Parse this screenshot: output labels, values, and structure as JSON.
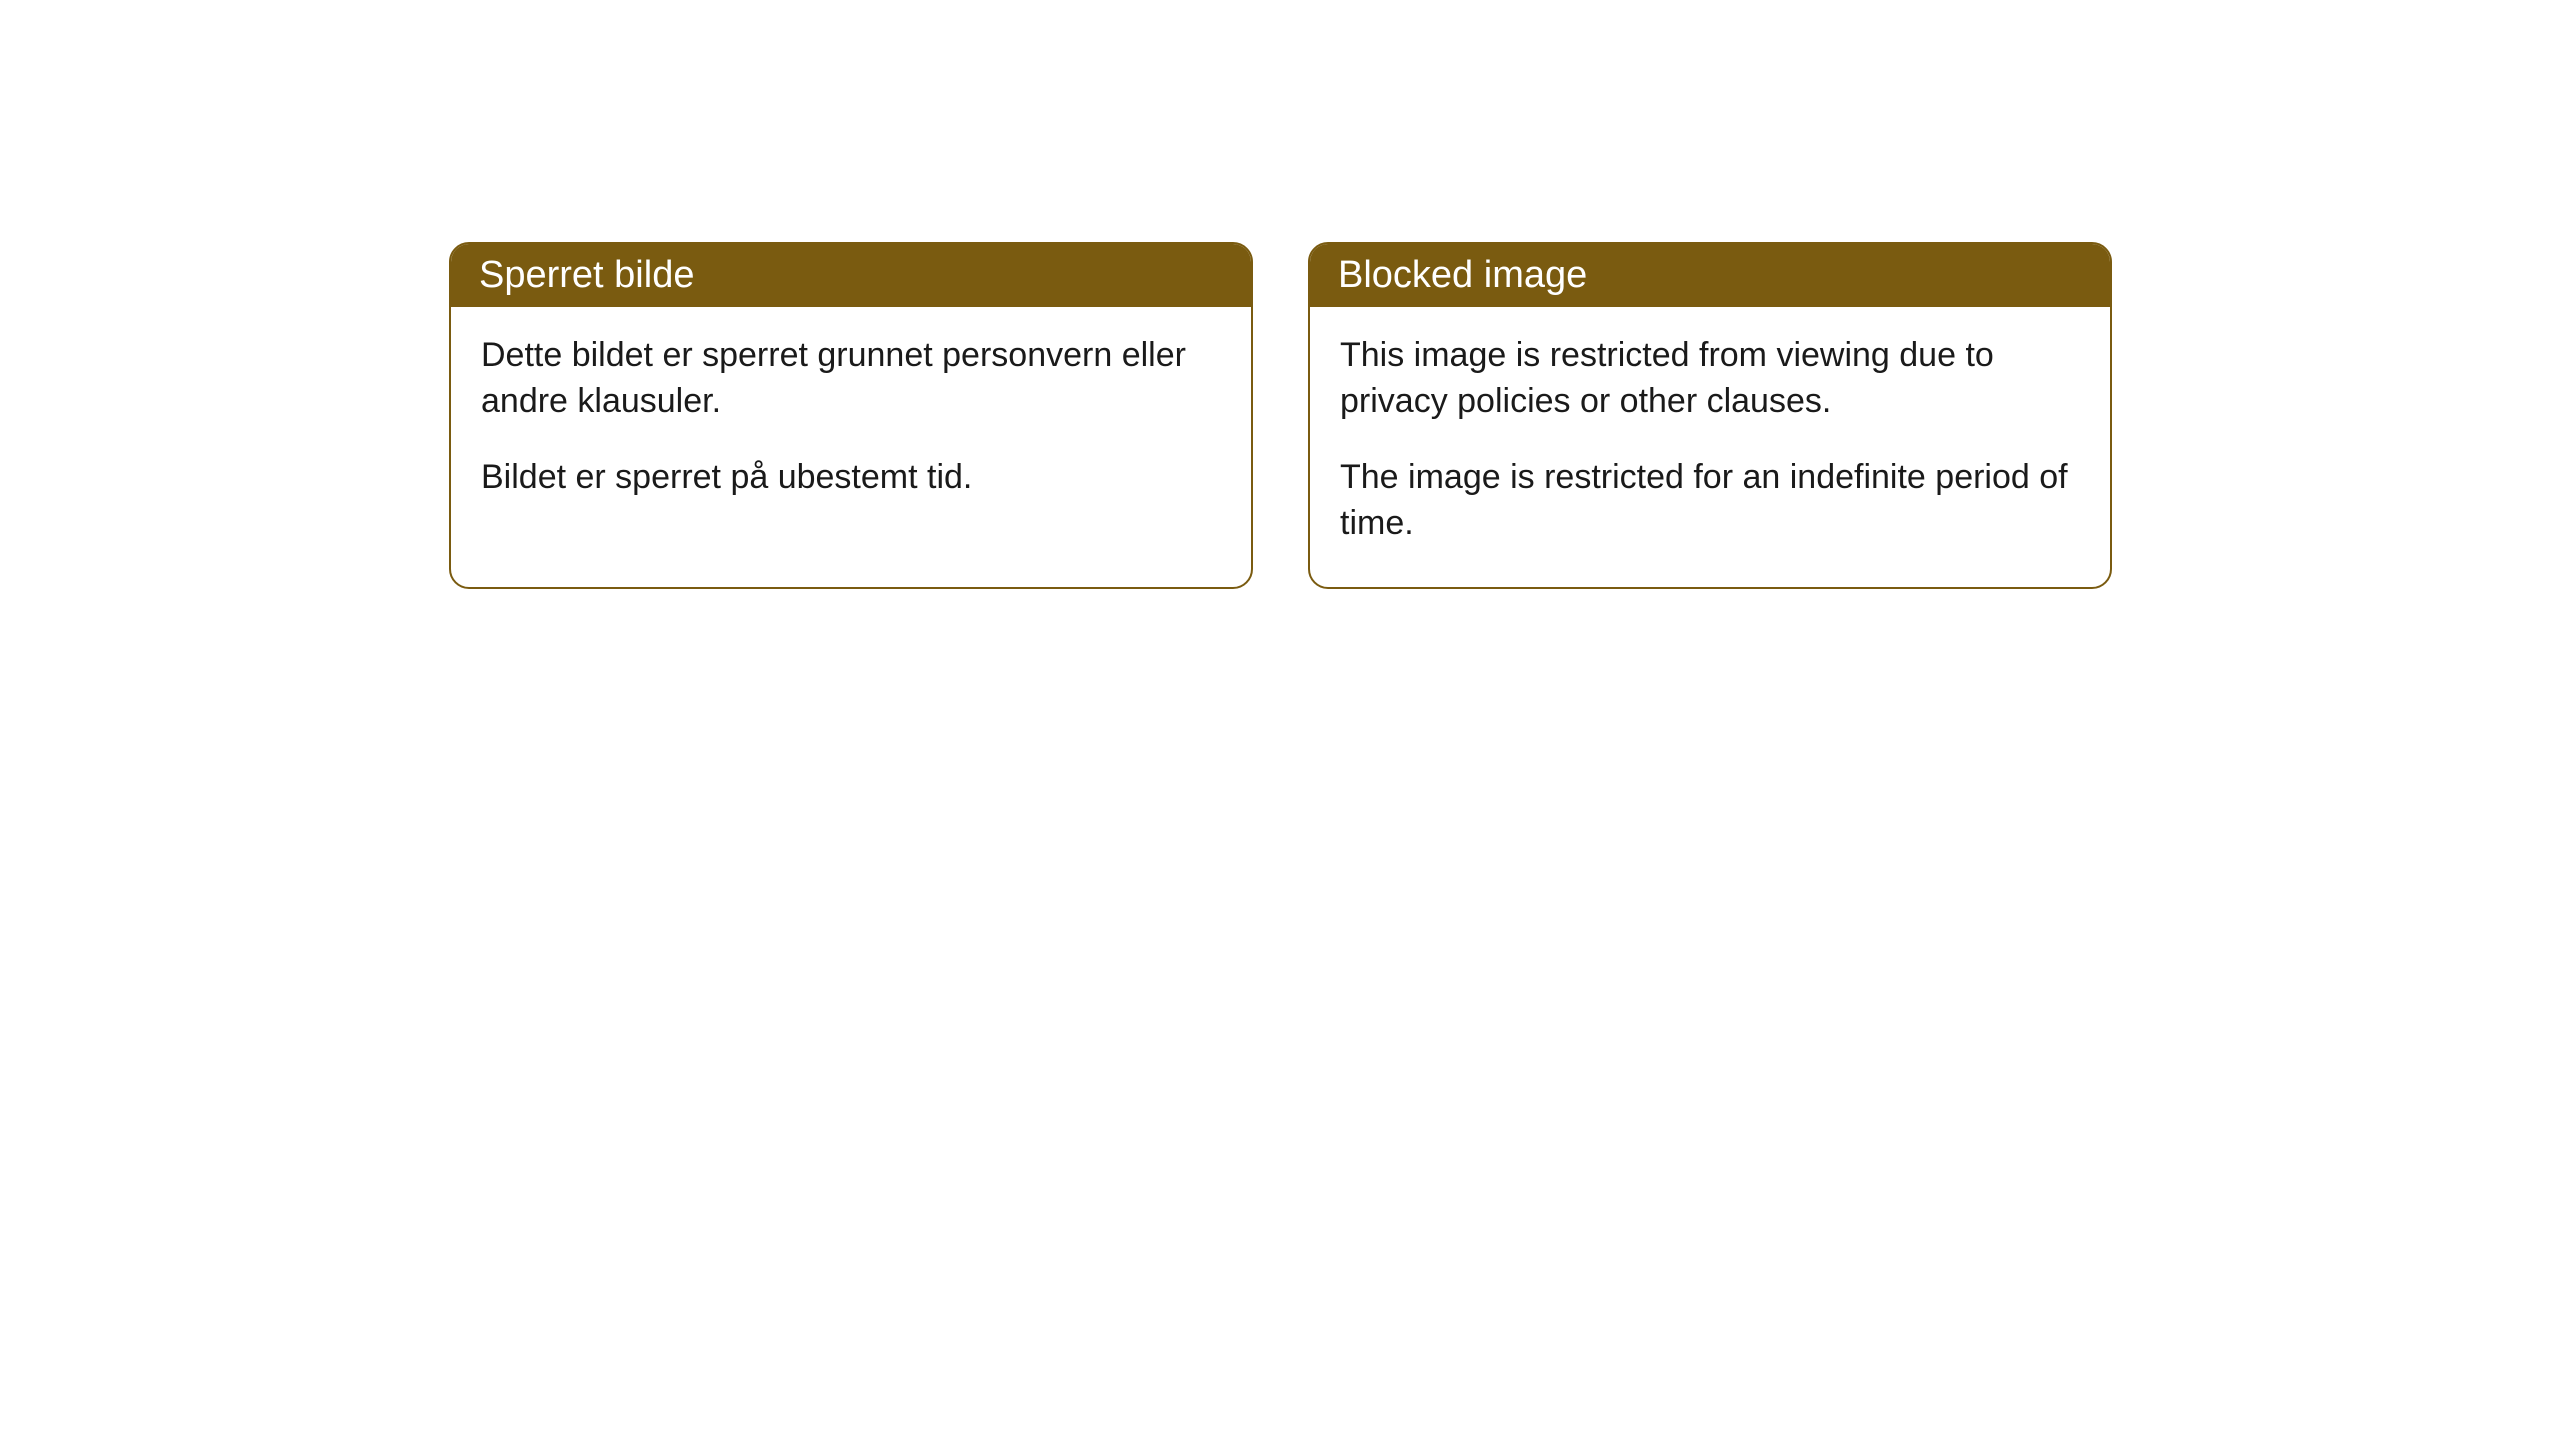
{
  "cards": [
    {
      "title": "Sperret bilde",
      "paragraph1": "Dette bildet er sperret grunnet personvern eller andre klausuler.",
      "paragraph2": "Bildet er sperret på ubestemt tid."
    },
    {
      "title": "Blocked image",
      "paragraph1": "This image is restricted from viewing due to privacy policies or other clauses.",
      "paragraph2": "The image is restricted for an indefinite period of time."
    }
  ],
  "styling": {
    "header_bg_color": "#7a5b10",
    "header_text_color": "#ffffff",
    "border_color": "#7a5b10",
    "body_text_color": "#1a1a1a",
    "body_bg_color": "#ffffff",
    "border_radius": 20,
    "title_fontsize": 38,
    "body_fontsize": 34
  }
}
